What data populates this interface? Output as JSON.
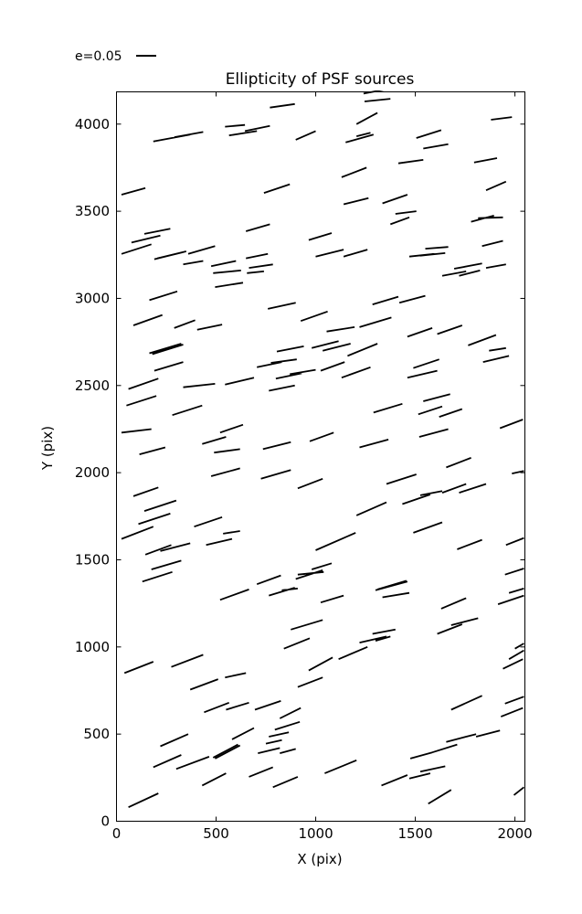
{
  "figure": {
    "title": "Ellipticity of PSF sources",
    "legend": {
      "label": "e=0.05"
    },
    "x_axis": {
      "label": "X (pix)"
    },
    "y_axis": {
      "label": "Y (pix)"
    }
  },
  "chart_data": {
    "type": "line",
    "variant": "segment-field (PSF ellipticity whisker map)",
    "title": "Ellipticity of PSF sources",
    "xlabel": "X (pix)",
    "ylabel": "Y (pix)",
    "legend_label": "e=0.05",
    "xlim": [
      0,
      2050
    ],
    "ylim": [
      0,
      4185
    ],
    "xticks": [
      0,
      500,
      1000,
      1500,
      2000
    ],
    "yticks": [
      0,
      500,
      1000,
      1500,
      2000,
      2500,
      3000,
      3500,
      4000
    ],
    "grid": false,
    "colors": {
      "line": "#000000",
      "axis": "#000000",
      "background": "#ffffff"
    },
    "segments": [
      [
        770,
        4095,
        895,
        4115
      ],
      [
        545,
        3985,
        645,
        3995
      ],
      [
        645,
        3960,
        770,
        3990
      ],
      [
        565,
        3935,
        705,
        3960
      ],
      [
        900,
        3910,
        1000,
        3960
      ],
      [
        185,
        3900,
        370,
        3940
      ],
      [
        290,
        3925,
        435,
        3955
      ],
      [
        25,
        3595,
        145,
        3633
      ],
      [
        740,
        3605,
        870,
        3655
      ],
      [
        75,
        3320,
        220,
        3360
      ],
      [
        140,
        3370,
        270,
        3400
      ],
      [
        25,
        3255,
        175,
        3310
      ],
      [
        650,
        3385,
        770,
        3425
      ],
      [
        190,
        3225,
        335,
        3265
      ],
      [
        205,
        3230,
        350,
        3270
      ],
      [
        360,
        3255,
        495,
        3300
      ],
      [
        335,
        3195,
        435,
        3215
      ],
      [
        475,
        3185,
        600,
        3215
      ],
      [
        650,
        3230,
        760,
        3255
      ],
      [
        665,
        3175,
        785,
        3195
      ],
      [
        965,
        3335,
        1080,
        3375
      ],
      [
        1000,
        3240,
        1140,
        3280
      ],
      [
        1240,
        4175,
        1355,
        4200
      ],
      [
        1245,
        4130,
        1375,
        4145
      ],
      [
        1205,
        4000,
        1310,
        4065
      ],
      [
        1150,
        3895,
        1290,
        3940
      ],
      [
        1205,
        3930,
        1275,
        3950
      ],
      [
        1505,
        3920,
        1630,
        3965
      ],
      [
        1540,
        3860,
        1665,
        3885
      ],
      [
        1880,
        4025,
        1985,
        4040
      ],
      [
        1795,
        3780,
        1910,
        3805
      ],
      [
        1415,
        3775,
        1540,
        3795
      ],
      [
        1130,
        3695,
        1255,
        3750
      ],
      [
        1855,
        3620,
        1955,
        3670
      ],
      [
        1140,
        3540,
        1265,
        3575
      ],
      [
        1335,
        3545,
        1460,
        3595
      ],
      [
        1400,
        3485,
        1505,
        3500
      ],
      [
        1375,
        3425,
        1470,
        3465
      ],
      [
        1780,
        3440,
        1895,
        3475
      ],
      [
        1815,
        3460,
        1940,
        3465
      ],
      [
        1140,
        3240,
        1260,
        3280
      ],
      [
        1470,
        3240,
        1595,
        3255
      ],
      [
        1525,
        3245,
        1650,
        3260
      ],
      [
        1550,
        3285,
        1665,
        3295
      ],
      [
        1835,
        3300,
        1940,
        3330
      ],
      [
        1695,
        3170,
        1835,
        3200
      ],
      [
        1855,
        3175,
        1955,
        3195
      ],
      [
        485,
        3145,
        625,
        3160
      ],
      [
        655,
        3145,
        740,
        3155
      ],
      [
        495,
        3065,
        635,
        3090
      ],
      [
        165,
        2990,
        305,
        3040
      ],
      [
        760,
        2940,
        900,
        2975
      ],
      [
        85,
        2845,
        230,
        2905
      ],
      [
        290,
        2830,
        395,
        2875
      ],
      [
        405,
        2820,
        530,
        2850
      ],
      [
        925,
        2870,
        1060,
        2925
      ],
      [
        165,
        2685,
        325,
        2740
      ],
      [
        180,
        2680,
        335,
        2735
      ],
      [
        805,
        2695,
        940,
        2725
      ],
      [
        980,
        2715,
        1115,
        2755
      ],
      [
        1035,
        2700,
        1175,
        2740
      ],
      [
        190,
        2585,
        335,
        2635
      ],
      [
        705,
        2605,
        830,
        2635
      ],
      [
        775,
        2630,
        905,
        2650
      ],
      [
        800,
        2540,
        930,
        2570
      ],
      [
        870,
        2565,
        1000,
        2590
      ],
      [
        545,
        2505,
        690,
        2545
      ],
      [
        335,
        2490,
        495,
        2510
      ],
      [
        60,
        2480,
        210,
        2540
      ],
      [
        765,
        2470,
        895,
        2500
      ],
      [
        50,
        2385,
        200,
        2440
      ],
      [
        280,
        2330,
        430,
        2385
      ],
      [
        25,
        2230,
        175,
        2250
      ],
      [
        520,
        2230,
        635,
        2275
      ],
      [
        430,
        2165,
        550,
        2205
      ],
      [
        735,
        2135,
        875,
        2175
      ],
      [
        115,
        2105,
        245,
        2145
      ],
      [
        490,
        2115,
        620,
        2135
      ],
      [
        970,
        2180,
        1090,
        2230
      ],
      [
        1635,
        3130,
        1755,
        3155
      ],
      [
        1720,
        3130,
        1825,
        3160
      ],
      [
        1285,
        2965,
        1415,
        3010
      ],
      [
        1420,
        2975,
        1550,
        3015
      ],
      [
        1220,
        2835,
        1380,
        2890
      ],
      [
        1055,
        2810,
        1195,
        2835
      ],
      [
        1460,
        2780,
        1585,
        2830
      ],
      [
        1610,
        2795,
        1735,
        2845
      ],
      [
        1765,
        2730,
        1905,
        2790
      ],
      [
        1160,
        2670,
        1310,
        2740
      ],
      [
        1870,
        2700,
        1955,
        2715
      ],
      [
        1840,
        2635,
        1970,
        2670
      ],
      [
        1025,
        2585,
        1145,
        2635
      ],
      [
        1130,
        2545,
        1275,
        2605
      ],
      [
        1490,
        2600,
        1620,
        2650
      ],
      [
        1460,
        2545,
        1610,
        2585
      ],
      [
        1540,
        2410,
        1675,
        2450
      ],
      [
        1290,
        2345,
        1435,
        2395
      ],
      [
        1515,
        2335,
        1635,
        2380
      ],
      [
        1620,
        2320,
        1735,
        2365
      ],
      [
        1925,
        2255,
        2040,
        2305
      ],
      [
        1520,
        2205,
        1665,
        2250
      ],
      [
        1220,
        2145,
        1365,
        2190
      ],
      [
        475,
        1980,
        620,
        2025
      ],
      [
        725,
        1965,
        875,
        2015
      ],
      [
        910,
        1910,
        1035,
        1965
      ],
      [
        85,
        1865,
        210,
        1915
      ],
      [
        140,
        1780,
        300,
        1840
      ],
      [
        110,
        1705,
        270,
        1765
      ],
      [
        25,
        1620,
        185,
        1690
      ],
      [
        390,
        1690,
        530,
        1745
      ],
      [
        535,
        1650,
        620,
        1665
      ],
      [
        450,
        1585,
        580,
        1620
      ],
      [
        145,
        1530,
        275,
        1585
      ],
      [
        220,
        1550,
        370,
        1595
      ],
      [
        175,
        1445,
        325,
        1495
      ],
      [
        130,
        1375,
        280,
        1430
      ],
      [
        520,
        1270,
        665,
        1330
      ],
      [
        705,
        1360,
        825,
        1410
      ],
      [
        765,
        1295,
        895,
        1340
      ],
      [
        830,
        1325,
        910,
        1335
      ],
      [
        900,
        1390,
        1035,
        1440
      ],
      [
        910,
        1415,
        1040,
        1430
      ],
      [
        1000,
        1555,
        1150,
        1630
      ],
      [
        1060,
        1585,
        1200,
        1655
      ],
      [
        875,
        1100,
        1035,
        1155
      ],
      [
        1655,
        2030,
        1780,
        2085
      ],
      [
        1355,
        1935,
        1505,
        1990
      ],
      [
        1985,
        1995,
        2045,
        2010
      ],
      [
        1635,
        1885,
        1755,
        1935
      ],
      [
        1720,
        1885,
        1855,
        1935
      ],
      [
        1525,
        1870,
        1635,
        1895
      ],
      [
        1435,
        1820,
        1575,
        1875
      ],
      [
        1205,
        1755,
        1355,
        1830
      ],
      [
        1490,
        1655,
        1635,
        1715
      ],
      [
        1710,
        1560,
        1835,
        1615
      ],
      [
        1955,
        1585,
        2045,
        1625
      ],
      [
        980,
        1445,
        1080,
        1480
      ],
      [
        1950,
        1415,
        2045,
        1450
      ],
      [
        1300,
        1325,
        1460,
        1375
      ],
      [
        1310,
        1330,
        1455,
        1380
      ],
      [
        1335,
        1285,
        1470,
        1310
      ],
      [
        1025,
        1255,
        1140,
        1295
      ],
      [
        1630,
        1220,
        1755,
        1280
      ],
      [
        1915,
        1245,
        2045,
        1295
      ],
      [
        1970,
        1310,
        2045,
        1335
      ],
      [
        1680,
        1125,
        1815,
        1165
      ],
      [
        1285,
        1075,
        1400,
        1100
      ],
      [
        1610,
        1075,
        1735,
        1130
      ],
      [
        40,
        850,
        185,
        915
      ],
      [
        275,
        885,
        435,
        955
      ],
      [
        370,
        755,
        510,
        815
      ],
      [
        545,
        825,
        650,
        850
      ],
      [
        840,
        990,
        970,
        1050
      ],
      [
        965,
        865,
        1085,
        940
      ],
      [
        910,
        770,
        1035,
        825
      ],
      [
        440,
        625,
        565,
        680
      ],
      [
        550,
        640,
        665,
        680
      ],
      [
        695,
        640,
        825,
        690
      ],
      [
        820,
        590,
        925,
        650
      ],
      [
        795,
        525,
        920,
        570
      ],
      [
        765,
        485,
        865,
        510
      ],
      [
        220,
        430,
        360,
        500
      ],
      [
        580,
        470,
        690,
        535
      ],
      [
        485,
        365,
        610,
        440
      ],
      [
        495,
        360,
        620,
        435
      ],
      [
        750,
        445,
        830,
        465
      ],
      [
        710,
        390,
        820,
        420
      ],
      [
        820,
        390,
        900,
        415
      ],
      [
        185,
        310,
        325,
        380
      ],
      [
        300,
        300,
        465,
        370
      ],
      [
        665,
        255,
        785,
        310
      ],
      [
        430,
        205,
        550,
        275
      ],
      [
        785,
        195,
        910,
        255
      ],
      [
        60,
        80,
        210,
        160
      ],
      [
        1220,
        1025,
        1355,
        1060
      ],
      [
        1300,
        1035,
        1375,
        1060
      ],
      [
        1115,
        930,
        1260,
        1000
      ],
      [
        1970,
        930,
        2045,
        980
      ],
      [
        1940,
        875,
        2040,
        930
      ],
      [
        2000,
        990,
        2045,
        1020
      ],
      [
        1680,
        640,
        1835,
        720
      ],
      [
        1930,
        600,
        2040,
        650
      ],
      [
        1950,
        675,
        2045,
        715
      ],
      [
        1805,
        485,
        1925,
        520
      ],
      [
        1655,
        455,
        1805,
        500
      ],
      [
        1585,
        395,
        1710,
        440
      ],
      [
        1475,
        360,
        1585,
        395
      ],
      [
        1045,
        275,
        1205,
        350
      ],
      [
        1525,
        285,
        1650,
        315
      ],
      [
        1470,
        245,
        1575,
        275
      ],
      [
        1330,
        205,
        1460,
        265
      ],
      [
        1565,
        100,
        1680,
        180
      ],
      [
        1995,
        150,
        2045,
        195
      ]
    ]
  }
}
